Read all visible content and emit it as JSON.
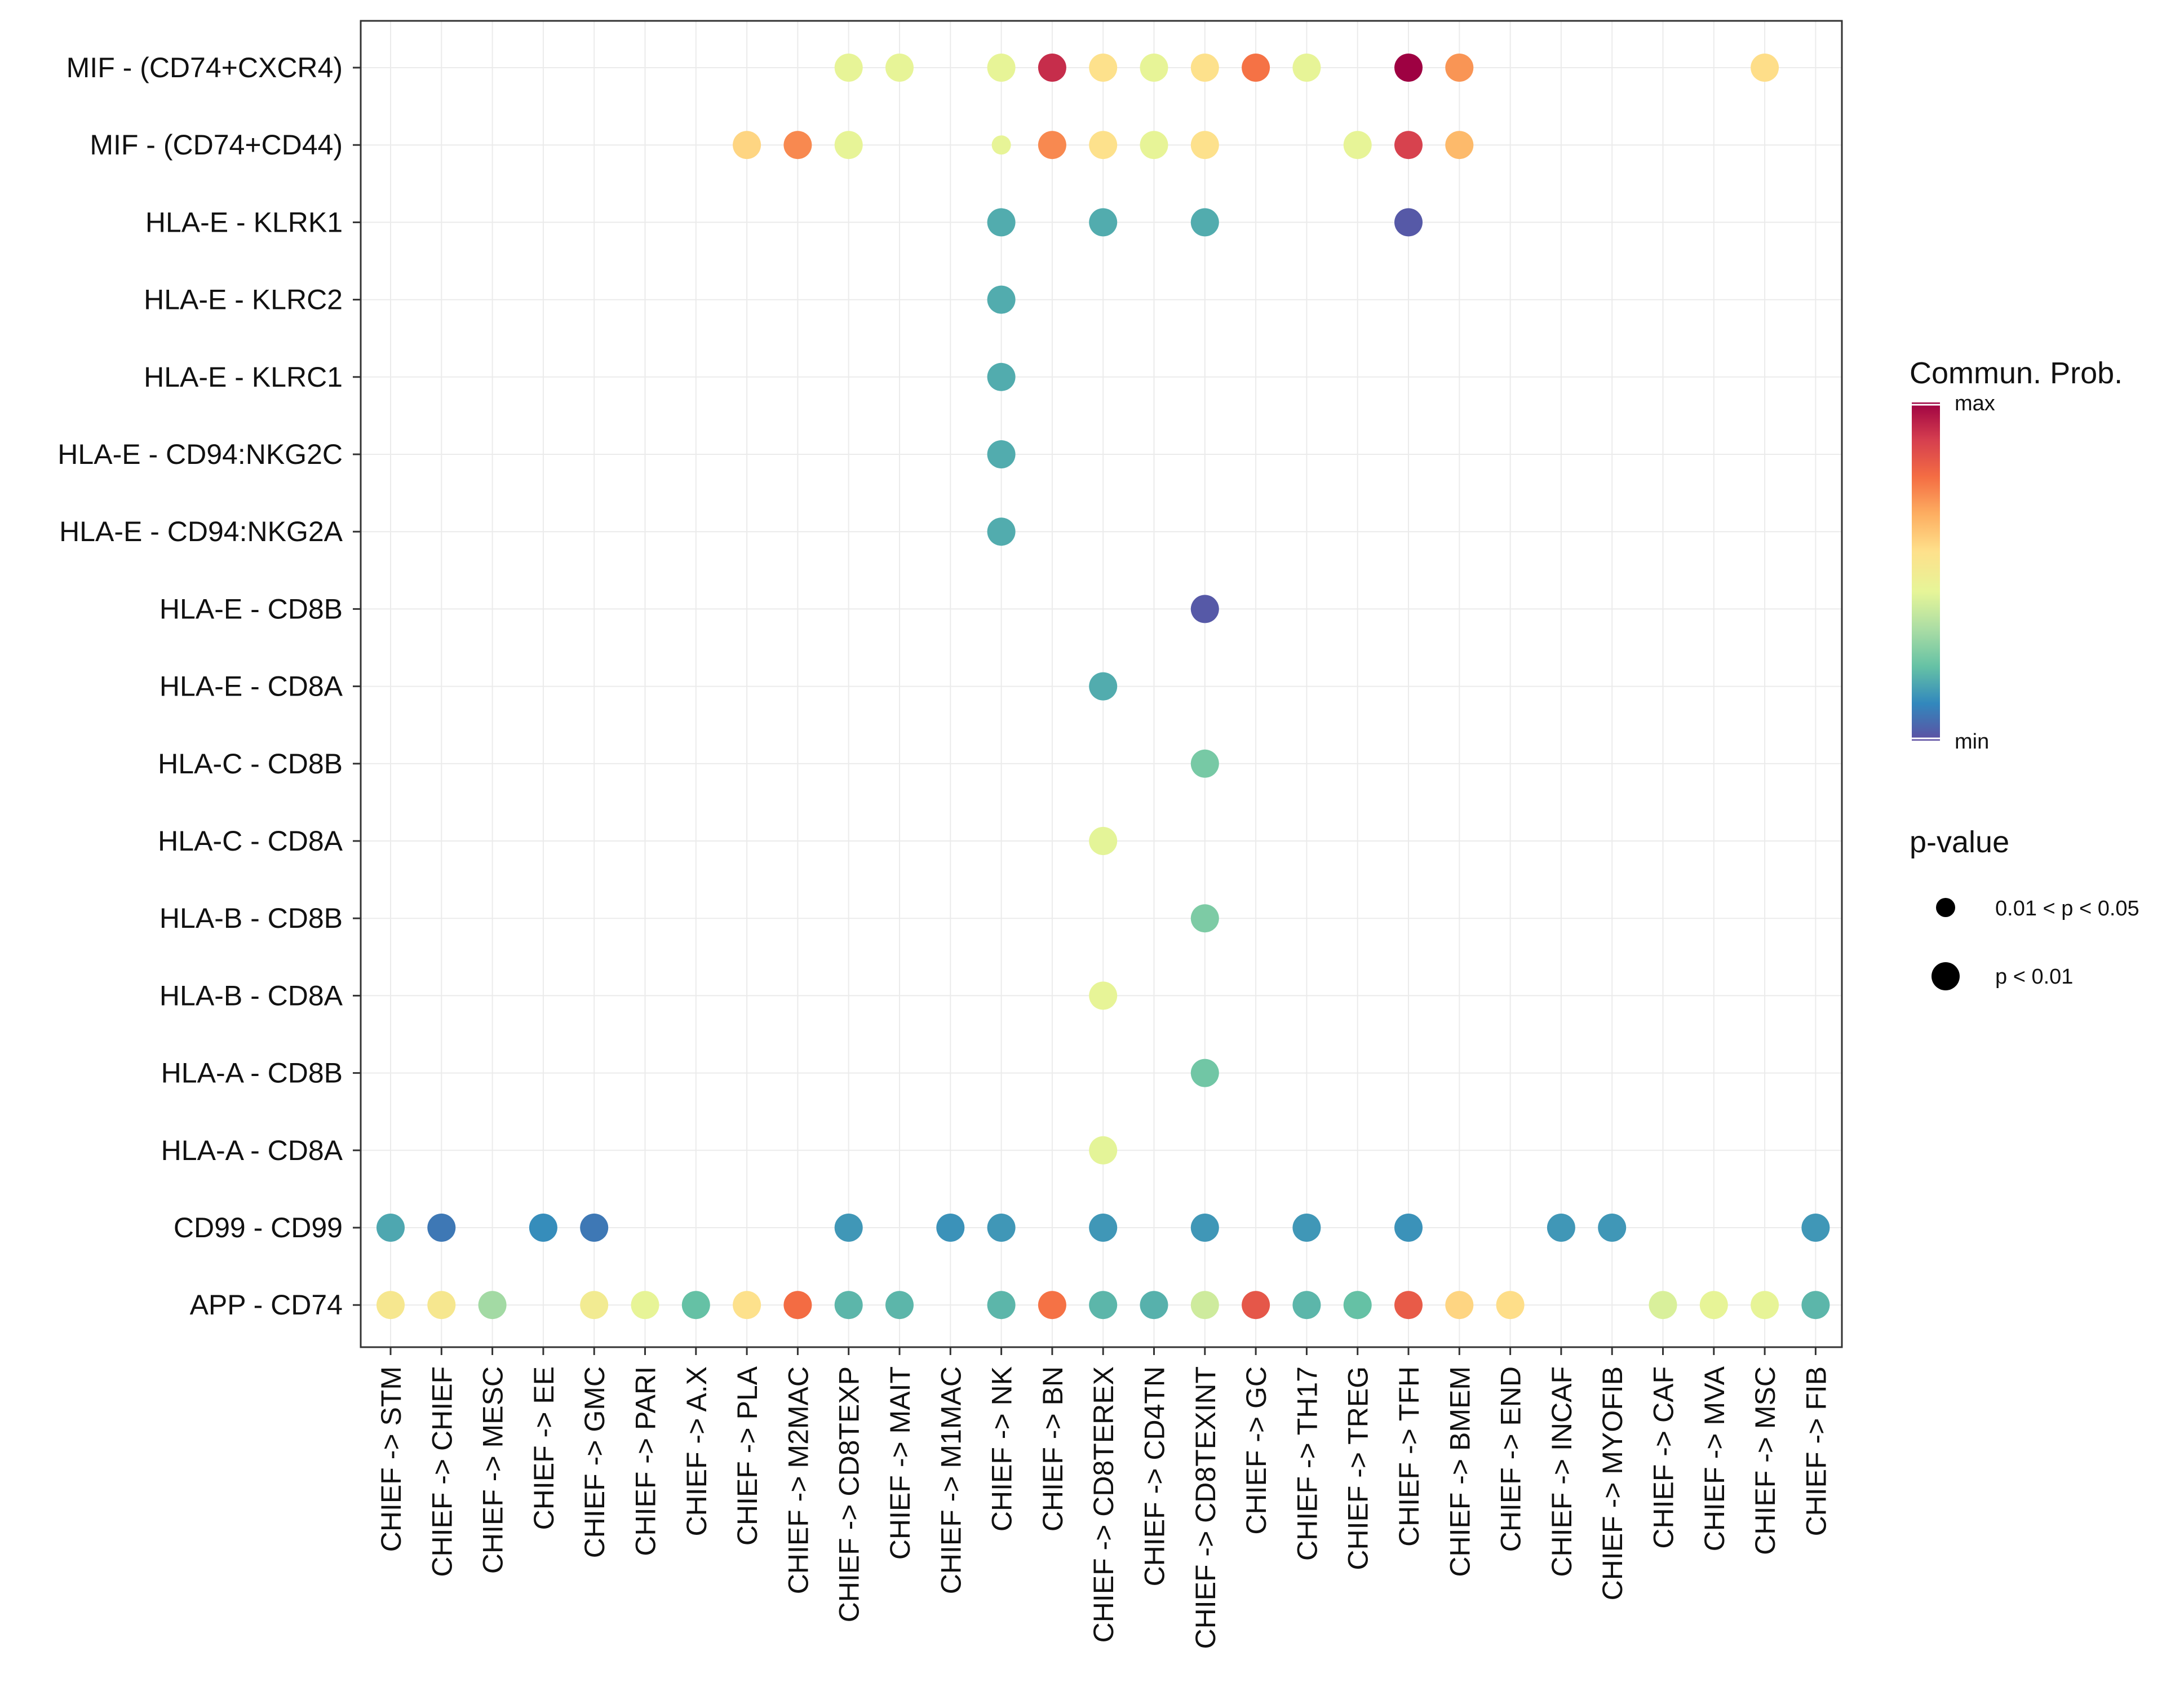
{
  "chart_data": {
    "type": "bubble",
    "rows": [
      "MIF - (CD74+CXCR4)",
      "MIF - (CD74+CD44)",
      "HLA-E - KLRK1",
      "HLA-E - KLRC2",
      "HLA-E - KLRC1",
      "HLA-E - CD94:NKG2C",
      "HLA-E - CD94:NKG2A",
      "HLA-E - CD8B",
      "HLA-E - CD8A",
      "HLA-C - CD8B",
      "HLA-C - CD8A",
      "HLA-B - CD8B",
      "HLA-B - CD8A",
      "HLA-A - CD8B",
      "HLA-A - CD8A",
      "CD99 - CD99",
      "APP - CD74"
    ],
    "columns": [
      "CHIEF -> STM",
      "CHIEF -> CHIEF",
      "CHIEF -> MESC",
      "CHIEF -> EE",
      "CHIEF -> GMC",
      "CHIEF -> PARI",
      "CHIEF -> A.X",
      "CHIEF -> PLA",
      "CHIEF -> M2MAC",
      "CHIEF -> CD8TEXP",
      "CHIEF -> MAIT",
      "CHIEF -> M1MAC",
      "CHIEF -> NK",
      "CHIEF -> BN",
      "CHIEF -> CD8TEREX",
      "CHIEF -> CD4TN",
      "CHIEF -> CD8TEXINT",
      "CHIEF -> GC",
      "CHIEF -> TH17",
      "CHIEF -> TREG",
      "CHIEF -> TFH",
      "CHIEF -> BMEM",
      "CHIEF -> END",
      "CHIEF -> INCAF",
      "CHIEF -> MYOFIB",
      "CHIEF -> CAF",
      "CHIEF -> MVA",
      "CHIEF -> MSC",
      "CHIEF -> FIB"
    ],
    "points": [
      {
        "row": 0,
        "col": 9,
        "prob": 0.45,
        "pval": "p < 0.01"
      },
      {
        "row": 0,
        "col": 10,
        "prob": 0.45,
        "pval": "p < 0.01"
      },
      {
        "row": 0,
        "col": 12,
        "prob": 0.45,
        "pval": "p < 0.01"
      },
      {
        "row": 0,
        "col": 13,
        "prob": 0.92,
        "pval": "p < 0.01"
      },
      {
        "row": 0,
        "col": 14,
        "prob": 0.55,
        "pval": "p < 0.01"
      },
      {
        "row": 0,
        "col": 15,
        "prob": 0.45,
        "pval": "p < 0.01"
      },
      {
        "row": 0,
        "col": 16,
        "prob": 0.55,
        "pval": "p < 0.01"
      },
      {
        "row": 0,
        "col": 17,
        "prob": 0.77,
        "pval": "p < 0.01"
      },
      {
        "row": 0,
        "col": 18,
        "prob": 0.45,
        "pval": "p < 0.01"
      },
      {
        "row": 0,
        "col": 20,
        "prob": 1.0,
        "pval": "p < 0.01"
      },
      {
        "row": 0,
        "col": 21,
        "prob": 0.71,
        "pval": "p < 0.01"
      },
      {
        "row": 0,
        "col": 27,
        "prob": 0.56,
        "pval": "p < 0.01"
      },
      {
        "row": 1,
        "col": 7,
        "prob": 0.58,
        "pval": "p < 0.01"
      },
      {
        "row": 1,
        "col": 8,
        "prob": 0.73,
        "pval": "p < 0.01"
      },
      {
        "row": 1,
        "col": 9,
        "prob": 0.45,
        "pval": "p < 0.01"
      },
      {
        "row": 1,
        "col": 12,
        "prob": 0.45,
        "pval": "0.01 < p < 0.05"
      },
      {
        "row": 1,
        "col": 13,
        "prob": 0.73,
        "pval": "p < 0.01"
      },
      {
        "row": 1,
        "col": 14,
        "prob": 0.55,
        "pval": "p < 0.01"
      },
      {
        "row": 1,
        "col": 15,
        "prob": 0.45,
        "pval": "p < 0.01"
      },
      {
        "row": 1,
        "col": 16,
        "prob": 0.55,
        "pval": "p < 0.01"
      },
      {
        "row": 1,
        "col": 19,
        "prob": 0.45,
        "pval": "p < 0.01"
      },
      {
        "row": 1,
        "col": 20,
        "prob": 0.88,
        "pval": "p < 0.01"
      },
      {
        "row": 1,
        "col": 21,
        "prob": 0.64,
        "pval": "p < 0.01"
      },
      {
        "row": 2,
        "col": 12,
        "prob": 0.18,
        "pval": "p < 0.01"
      },
      {
        "row": 2,
        "col": 14,
        "prob": 0.18,
        "pval": "p < 0.01"
      },
      {
        "row": 2,
        "col": 16,
        "prob": 0.18,
        "pval": "p < 0.01"
      },
      {
        "row": 2,
        "col": 20,
        "prob": 0.02,
        "pval": "p < 0.01"
      },
      {
        "row": 3,
        "col": 12,
        "prob": 0.18,
        "pval": "p < 0.01"
      },
      {
        "row": 4,
        "col": 12,
        "prob": 0.18,
        "pval": "p < 0.01"
      },
      {
        "row": 5,
        "col": 12,
        "prob": 0.18,
        "pval": "p < 0.01"
      },
      {
        "row": 6,
        "col": 12,
        "prob": 0.18,
        "pval": "p < 0.01"
      },
      {
        "row": 7,
        "col": 16,
        "prob": 0.02,
        "pval": "p < 0.01"
      },
      {
        "row": 8,
        "col": 14,
        "prob": 0.18,
        "pval": "p < 0.01"
      },
      {
        "row": 9,
        "col": 16,
        "prob": 0.25,
        "pval": "p < 0.01"
      },
      {
        "row": 10,
        "col": 14,
        "prob": 0.44,
        "pval": "p < 0.01"
      },
      {
        "row": 11,
        "col": 16,
        "prob": 0.26,
        "pval": "p < 0.01"
      },
      {
        "row": 12,
        "col": 14,
        "prob": 0.45,
        "pval": "p < 0.01"
      },
      {
        "row": 13,
        "col": 16,
        "prob": 0.24,
        "pval": "p < 0.01"
      },
      {
        "row": 14,
        "col": 14,
        "prob": 0.44,
        "pval": "p < 0.01"
      },
      {
        "row": 15,
        "col": 0,
        "prob": 0.17,
        "pval": "p < 0.01"
      },
      {
        "row": 15,
        "col": 1,
        "prob": 0.08,
        "pval": "p < 0.01"
      },
      {
        "row": 15,
        "col": 3,
        "prob": 0.12,
        "pval": "p < 0.01"
      },
      {
        "row": 15,
        "col": 4,
        "prob": 0.08,
        "pval": "p < 0.01"
      },
      {
        "row": 15,
        "col": 9,
        "prob": 0.14,
        "pval": "p < 0.01"
      },
      {
        "row": 15,
        "col": 11,
        "prob": 0.13,
        "pval": "p < 0.01"
      },
      {
        "row": 15,
        "col": 12,
        "prob": 0.14,
        "pval": "p < 0.01"
      },
      {
        "row": 15,
        "col": 14,
        "prob": 0.14,
        "pval": "p < 0.01"
      },
      {
        "row": 15,
        "col": 16,
        "prob": 0.14,
        "pval": "p < 0.01"
      },
      {
        "row": 15,
        "col": 18,
        "prob": 0.14,
        "pval": "p < 0.01"
      },
      {
        "row": 15,
        "col": 20,
        "prob": 0.13,
        "pval": "p < 0.01"
      },
      {
        "row": 15,
        "col": 23,
        "prob": 0.14,
        "pval": "p < 0.01"
      },
      {
        "row": 15,
        "col": 24,
        "prob": 0.14,
        "pval": "p < 0.01"
      },
      {
        "row": 15,
        "col": 28,
        "prob": 0.14,
        "pval": "p < 0.01"
      },
      {
        "row": 16,
        "col": 0,
        "prob": 0.52,
        "pval": "p < 0.01"
      },
      {
        "row": 16,
        "col": 1,
        "prob": 0.52,
        "pval": "p < 0.01"
      },
      {
        "row": 16,
        "col": 2,
        "prob": 0.32,
        "pval": "p < 0.01"
      },
      {
        "row": 16,
        "col": 4,
        "prob": 0.5,
        "pval": "p < 0.01"
      },
      {
        "row": 16,
        "col": 5,
        "prob": 0.45,
        "pval": "p < 0.01"
      },
      {
        "row": 16,
        "col": 6,
        "prob": 0.22,
        "pval": "p < 0.01"
      },
      {
        "row": 16,
        "col": 7,
        "prob": 0.55,
        "pval": "p < 0.01"
      },
      {
        "row": 16,
        "col": 8,
        "prob": 0.78,
        "pval": "p < 0.01"
      },
      {
        "row": 16,
        "col": 9,
        "prob": 0.2,
        "pval": "p < 0.01"
      },
      {
        "row": 16,
        "col": 10,
        "prob": 0.2,
        "pval": "p < 0.01"
      },
      {
        "row": 16,
        "col": 12,
        "prob": 0.2,
        "pval": "p < 0.01"
      },
      {
        "row": 16,
        "col": 13,
        "prob": 0.77,
        "pval": "p < 0.01"
      },
      {
        "row": 16,
        "col": 14,
        "prob": 0.2,
        "pval": "p < 0.01"
      },
      {
        "row": 16,
        "col": 15,
        "prob": 0.19,
        "pval": "p < 0.01"
      },
      {
        "row": 16,
        "col": 16,
        "prob": 0.4,
        "pval": "p < 0.01"
      },
      {
        "row": 16,
        "col": 17,
        "prob": 0.83,
        "pval": "p < 0.01"
      },
      {
        "row": 16,
        "col": 18,
        "prob": 0.2,
        "pval": "p < 0.01"
      },
      {
        "row": 16,
        "col": 19,
        "prob": 0.22,
        "pval": "p < 0.01"
      },
      {
        "row": 16,
        "col": 20,
        "prob": 0.82,
        "pval": "p < 0.01"
      },
      {
        "row": 16,
        "col": 21,
        "prob": 0.58,
        "pval": "p < 0.01"
      },
      {
        "row": 16,
        "col": 22,
        "prob": 0.56,
        "pval": "p < 0.01"
      },
      {
        "row": 16,
        "col": 25,
        "prob": 0.42,
        "pval": "p < 0.01"
      },
      {
        "row": 16,
        "col": 26,
        "prob": 0.45,
        "pval": "p < 0.01"
      },
      {
        "row": 16,
        "col": 27,
        "prob": 0.45,
        "pval": "p < 0.01"
      },
      {
        "row": 16,
        "col": 28,
        "prob": 0.2,
        "pval": "p < 0.01"
      }
    ],
    "legend": {
      "color_title": "Commun. Prob.",
      "color_max_label": "max",
      "color_min_label": "min",
      "size_title": "p-value",
      "size_levels": [
        "0.01 < p < 0.05",
        "p < 0.01"
      ]
    },
    "colors": {
      "scale": [
        "#5E4FA2",
        "#3288BD",
        "#66C2A5",
        "#ABDDA4",
        "#E6F598",
        "#FEE08B",
        "#FDAE61",
        "#F46D43",
        "#D53E4F",
        "#9E0142"
      ],
      "grid": "#ebebeb",
      "panel_border": "#333333"
    }
  }
}
